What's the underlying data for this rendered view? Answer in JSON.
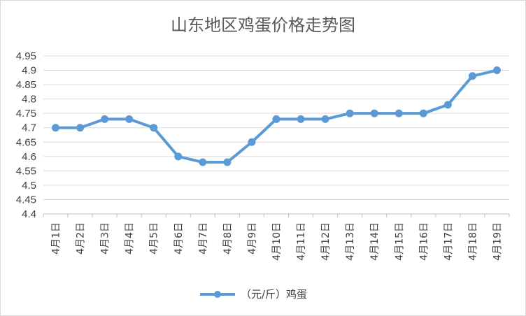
{
  "chart_data": {
    "type": "line",
    "title": "山东地区鸡蛋价格走势图",
    "xlabel": "",
    "ylabel": "",
    "categories": [
      "4月1日",
      "4月2日",
      "4月3日",
      "4月4日",
      "4月5日",
      "4月6日",
      "4月7日",
      "4月8日",
      "4月9日",
      "4月10日",
      "4月11日",
      "4月12日",
      "4月13日",
      "4月14日",
      "4月15日",
      "4月16日",
      "4月17日",
      "4月18日",
      "4月19日"
    ],
    "series": [
      {
        "name": "（元/斤）鸡蛋",
        "values": [
          4.7,
          4.7,
          4.73,
          4.73,
          4.7,
          4.6,
          4.58,
          4.58,
          4.65,
          4.73,
          4.73,
          4.73,
          4.75,
          4.75,
          4.75,
          4.75,
          4.78,
          4.88,
          4.9
        ]
      }
    ],
    "ylim": [
      4.4,
      4.95
    ],
    "yticks": [
      "4.4",
      "4.45",
      "4.5",
      "4.55",
      "4.6",
      "4.65",
      "4.7",
      "4.75",
      "4.8",
      "4.85",
      "4.9",
      "4.95"
    ],
    "grid": true,
    "legend_position": "bottom",
    "series_color": "#5b9bd5"
  }
}
